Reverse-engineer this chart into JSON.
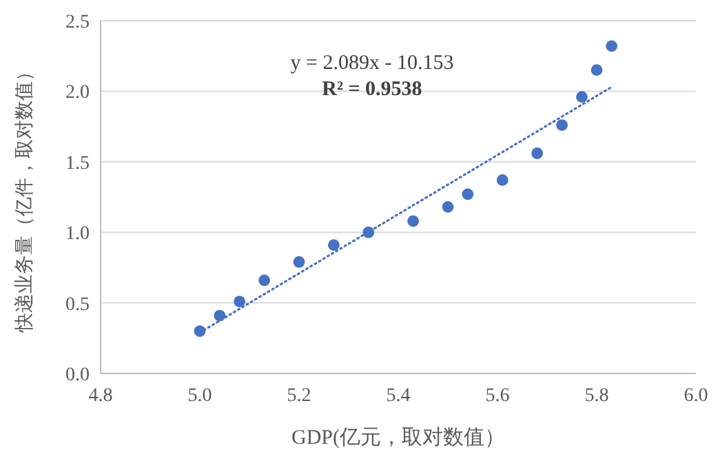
{
  "chart_data": {
    "type": "scatter",
    "xlabel": "GDP(亿元，取对数值）",
    "ylabel": "快递业务量（亿件，取对数值）",
    "annotations": [
      "y = 2.089x - 10.153",
      "R² = 0.9538"
    ],
    "xlim": [
      4.8,
      6.0
    ],
    "xticks": [
      {
        "value": 4.8,
        "label": "4.8"
      },
      {
        "value": 5.0,
        "label": "5.0"
      },
      {
        "value": 5.2,
        "label": "5.2"
      },
      {
        "value": 5.4,
        "label": "5.4"
      },
      {
        "value": 5.6,
        "label": "5.6"
      },
      {
        "value": 5.8,
        "label": "5.8"
      },
      {
        "value": 6.0,
        "label": "6.0"
      }
    ],
    "ylim": [
      0,
      2.5
    ],
    "yticks": [
      {
        "value": 0,
        "label": "0.0"
      },
      {
        "value": 0.5,
        "label": "0.5"
      },
      {
        "value": 1.0,
        "label": "1.0"
      },
      {
        "value": 1.5,
        "label": "1.5"
      },
      {
        "value": 2.0,
        "label": "2.0"
      },
      {
        "value": 2.5,
        "label": "2.5"
      }
    ],
    "grid": "y",
    "series": [
      {
        "color": "#4472c4",
        "marker": "circle",
        "x": [
          5.0,
          5.04,
          5.08,
          5.13,
          5.2,
          5.27,
          5.34,
          5.43,
          5.5,
          5.54,
          5.61,
          5.68,
          5.73,
          5.77,
          5.8,
          5.83
        ],
        "values": [
          0.3,
          0.41,
          0.51,
          0.66,
          0.79,
          0.91,
          1.0,
          1.08,
          1.18,
          1.27,
          1.37,
          1.56,
          1.76,
          1.96,
          2.15,
          2.32
        ]
      },
      {
        "type": "line",
        "color": "#4472c4",
        "line_style": "dotted",
        "x": [
          5.0,
          5.83
        ],
        "values": [
          0.29,
          2.03
        ]
      }
    ]
  }
}
